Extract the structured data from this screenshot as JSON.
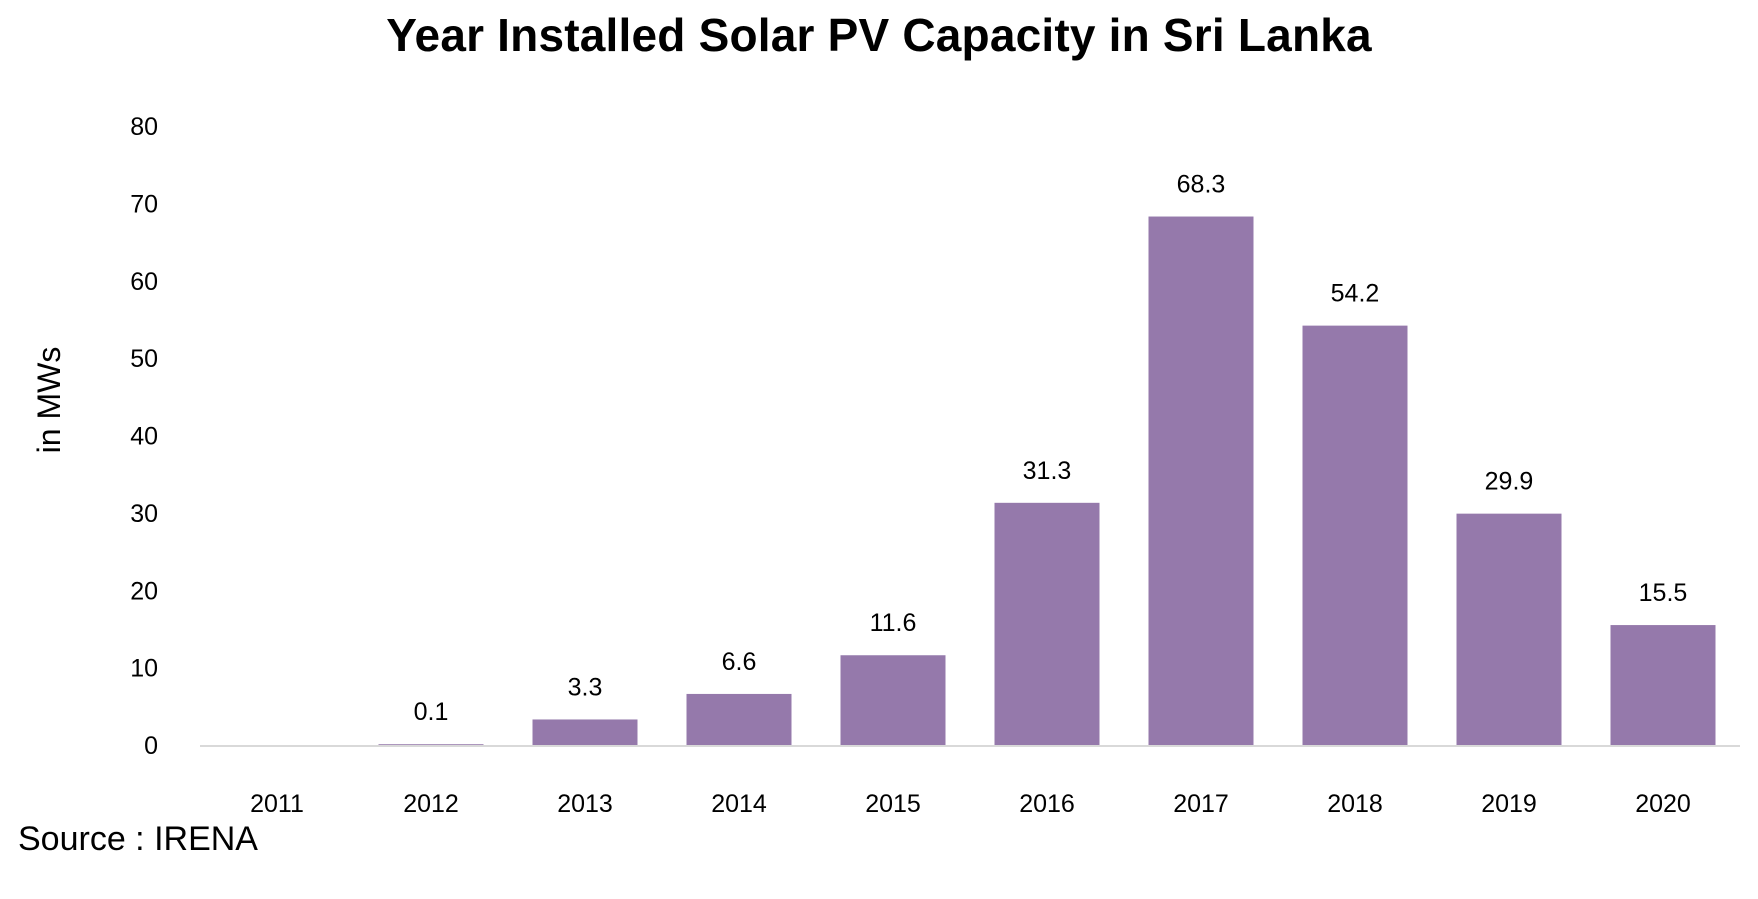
{
  "chart_data": {
    "type": "bar",
    "title": "Year Installed Solar PV Capacity in Sri Lanka",
    "xlabel": "",
    "ylabel": "in MWs",
    "categories": [
      "2011",
      "2012",
      "2013",
      "2014",
      "2015",
      "2016",
      "2017",
      "2018",
      "2019",
      "2020"
    ],
    "values": [
      0,
      0.1,
      3.3,
      6.6,
      11.6,
      31.3,
      68.3,
      54.2,
      29.9,
      15.5
    ],
    "data_labels": [
      "",
      "0.1",
      "3.3",
      "6.6",
      "11.6",
      "31.3",
      "68.3",
      "54.2",
      "29.9",
      "15.5"
    ],
    "ylim": [
      0,
      80
    ],
    "yticks": [
      0,
      10,
      20,
      30,
      40,
      50,
      60,
      70,
      80
    ],
    "grid": false,
    "legend": "none",
    "bar_color": "#9579AB",
    "axis_color": "#D9D9D9"
  },
  "source_note": "Source : IRENA"
}
